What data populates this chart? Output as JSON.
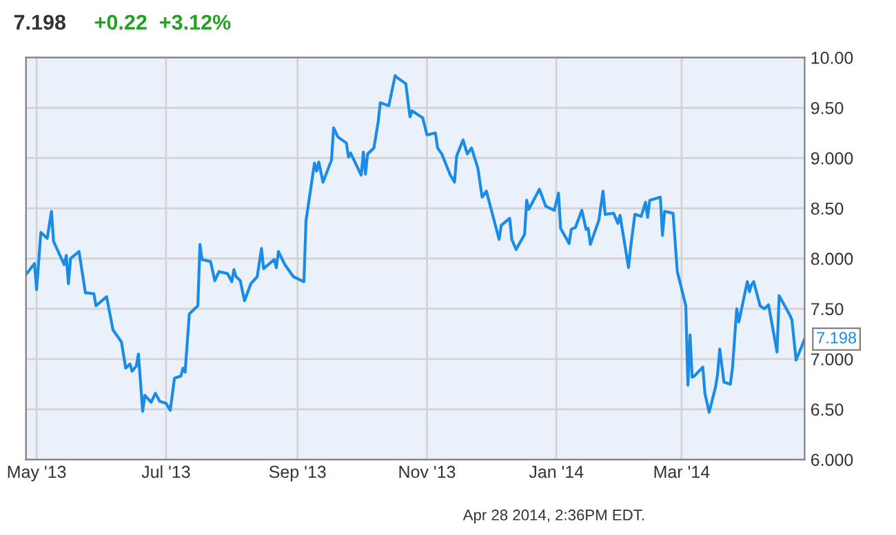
{
  "chart_data": {
    "type": "line",
    "title": "7.198",
    "subtitle": "+0.22  +3.12%",
    "annotations": [
      {
        "text": "7.198",
        "x": "2014-04-28",
        "y": 7.198
      },
      "Apr 28 2014, 2:36PM EDT."
    ],
    "series": [
      {
        "color": "#1a8be6",
        "x": [
          "2013-04-26",
          "2013-04-30",
          "2013-05-01",
          "2013-05-03",
          "2013-05-06",
          "2013-05-08",
          "2013-05-09",
          "2013-05-14",
          "2013-05-15",
          "2013-05-16",
          "2013-05-17",
          "2013-05-21",
          "2013-05-24",
          "2013-05-28",
          "2013-05-29",
          "2013-06-03",
          "2013-06-06",
          "2013-06-10",
          "2013-06-12",
          "2013-06-14",
          "2013-06-15",
          "2013-06-17",
          "2013-06-18",
          "2013-06-20",
          "2013-06-21",
          "2013-06-24",
          "2013-06-26",
          "2013-06-28",
          "2013-07-01",
          "2013-07-03",
          "2013-07-05",
          "2013-07-08",
          "2013-07-09",
          "2013-07-10",
          "2013-07-12",
          "2013-07-16",
          "2013-07-17",
          "2013-07-18",
          "2013-07-22",
          "2013-07-24",
          "2013-07-26",
          "2013-07-30",
          "2013-08-01",
          "2013-08-02",
          "2013-08-03",
          "2013-08-05",
          "2013-08-07",
          "2013-08-10",
          "2013-08-13",
          "2013-08-15",
          "2013-08-16",
          "2013-08-21",
          "2013-08-22",
          "2013-08-23",
          "2013-08-26",
          "2013-08-28",
          "2013-08-30",
          "2013-09-04",
          "2013-09-05",
          "2013-09-09",
          "2013-09-10",
          "2013-09-11",
          "2013-09-13",
          "2013-09-17",
          "2013-09-18",
          "2013-09-20",
          "2013-09-24",
          "2013-09-25",
          "2013-09-26",
          "2013-10-01",
          "2013-10-02",
          "2013-10-03",
          "2013-10-04",
          "2013-10-07",
          "2013-10-09",
          "2013-10-10",
          "2013-10-14",
          "2013-10-17",
          "2013-10-18",
          "2013-10-22",
          "2013-10-24",
          "2013-10-25",
          "2013-10-30",
          "2013-11-01",
          "2013-11-05",
          "2013-11-06",
          "2013-11-08",
          "2013-11-12",
          "2013-11-14",
          "2013-11-15",
          "2013-11-18",
          "2013-11-20",
          "2013-11-22",
          "2013-11-25",
          "2013-11-27",
          "2013-11-29",
          "2013-12-05",
          "2013-12-06",
          "2013-12-10",
          "2013-12-11",
          "2013-12-13",
          "2013-12-17",
          "2013-12-18",
          "2013-12-19",
          "2013-12-24",
          "2013-12-27",
          "2013-12-31",
          "2014-01-02",
          "2014-01-03",
          "2014-01-07",
          "2014-01-08",
          "2014-01-10",
          "2014-01-13",
          "2014-01-15",
          "2014-01-16",
          "2014-01-17",
          "2014-01-21",
          "2014-01-23",
          "2014-01-24",
          "2014-01-28",
          "2014-01-30",
          "2014-01-31",
          "2014-02-04",
          "2014-02-05",
          "2014-02-07",
          "2014-02-10",
          "2014-02-12",
          "2014-02-13",
          "2014-02-14",
          "2014-02-19",
          "2014-02-20",
          "2014-02-21",
          "2014-02-25",
          "2014-02-27",
          "2014-03-03",
          "2014-03-04",
          "2014-03-05",
          "2014-03-06",
          "2014-03-07",
          "2014-03-11",
          "2014-03-12",
          "2014-03-14",
          "2014-03-17",
          "2014-03-18",
          "2014-03-19",
          "2014-03-21",
          "2014-03-24",
          "2014-03-25",
          "2014-03-27",
          "2014-03-28",
          "2014-04-01",
          "2014-04-02",
          "2014-04-03",
          "2014-04-04",
          "2014-04-07",
          "2014-04-09",
          "2014-04-11",
          "2014-04-15",
          "2014-04-16",
          "2014-04-21",
          "2014-04-22",
          "2014-04-24",
          "2014-04-28"
        ],
        "values": [
          7.84,
          7.95,
          7.69,
          8.26,
          8.2,
          8.47,
          8.17,
          7.94,
          8.03,
          7.75,
          8.0,
          8.07,
          7.66,
          7.65,
          7.53,
          7.62,
          7.29,
          7.17,
          6.91,
          6.95,
          6.88,
          6.93,
          7.05,
          6.48,
          6.64,
          6.57,
          6.66,
          6.58,
          6.56,
          6.49,
          6.81,
          6.83,
          6.91,
          6.87,
          7.45,
          7.53,
          8.14,
          7.99,
          7.97,
          7.78,
          7.87,
          7.85,
          7.77,
          7.89,
          7.82,
          7.78,
          7.58,
          7.75,
          7.82,
          8.1,
          7.9,
          7.99,
          7.91,
          8.07,
          7.94,
          7.88,
          7.82,
          7.77,
          8.38,
          8.95,
          8.87,
          8.96,
          8.76,
          8.98,
          9.3,
          9.21,
          9.15,
          9.01,
          9.05,
          8.83,
          9.06,
          8.84,
          9.04,
          9.1,
          9.36,
          9.55,
          9.52,
          9.82,
          9.8,
          9.74,
          9.41,
          9.47,
          9.4,
          9.23,
          9.25,
          9.1,
          9.04,
          8.83,
          8.76,
          9.02,
          9.18,
          9.04,
          9.1,
          8.9,
          8.61,
          8.67,
          8.19,
          8.33,
          8.4,
          8.19,
          8.09,
          8.24,
          8.58,
          8.49,
          8.69,
          8.52,
          8.48,
          8.65,
          8.3,
          8.15,
          8.29,
          8.31,
          8.48,
          8.29,
          8.3,
          8.14,
          8.38,
          8.67,
          8.44,
          8.45,
          8.35,
          8.43,
          7.91,
          8.11,
          8.44,
          8.42,
          8.56,
          8.41,
          8.58,
          8.61,
          8.23,
          8.47,
          8.45,
          7.87,
          7.53,
          6.74,
          7.24,
          6.82,
          6.83,
          6.92,
          6.66,
          6.47,
          6.72,
          6.85,
          7.1,
          6.77,
          6.75,
          6.91,
          7.5,
          7.37,
          7.77,
          7.67,
          7.74,
          7.77,
          7.53,
          7.5,
          7.54,
          7.07,
          7.63,
          7.44,
          7.39,
          6.99,
          7.198
        ]
      }
    ],
    "xlim": [
      "2013-04-26",
      "2014-04-28"
    ],
    "xticks": [
      {
        "value": "2013-05-01",
        "label": "May '13"
      },
      {
        "value": "2013-07-01",
        "label": "Jul '13"
      },
      {
        "value": "2013-09-01",
        "label": "Sep '13"
      },
      {
        "value": "2013-11-01",
        "label": "Nov '13"
      },
      {
        "value": "2014-01-01",
        "label": "Jan '14"
      },
      {
        "value": "2014-03-01",
        "label": "Mar '14"
      }
    ],
    "ylim": [
      6,
      10
    ],
    "yticks": [
      {
        "value": 6,
        "label": "6.000"
      },
      {
        "value": 6.5,
        "label": "6.50"
      },
      {
        "value": 7,
        "label": "7.000"
      },
      {
        "value": 7.5,
        "label": "7.50"
      },
      {
        "value": 8,
        "label": "8.000"
      },
      {
        "value": 8.5,
        "label": "8.50"
      },
      {
        "value": 9,
        "label": "9.000"
      },
      {
        "value": 9.5,
        "label": "9.50"
      },
      {
        "value": 10,
        "label": "10.00"
      }
    ],
    "grid": true,
    "marker": "none",
    "line_style": "solid"
  }
}
